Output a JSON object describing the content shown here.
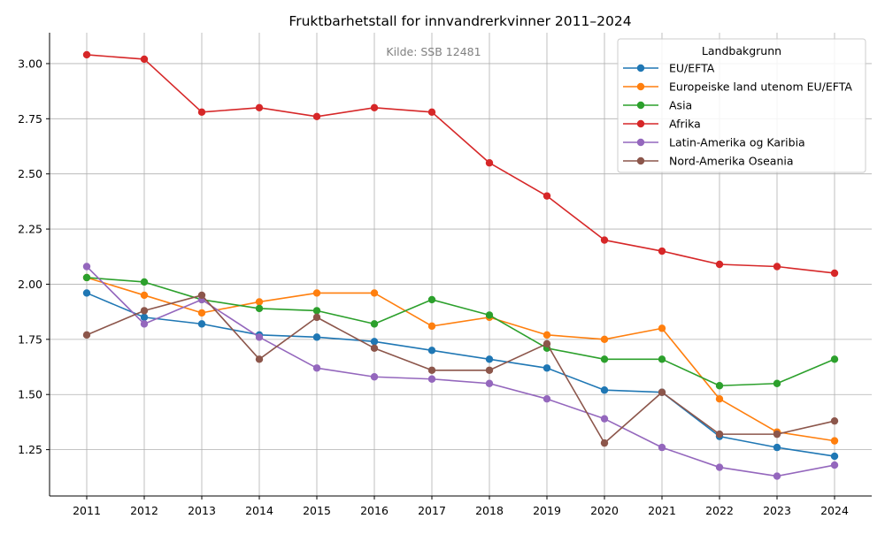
{
  "chart_data": {
    "type": "line",
    "title": "Fruktbarhetstall for innvandrerkvinner 2011–2024",
    "annotation": "Kilde: SSB 12481",
    "xlabel": "",
    "ylabel": "",
    "x": [
      2011,
      2012,
      2013,
      2014,
      2015,
      2016,
      2017,
      2018,
      2019,
      2020,
      2021,
      2022,
      2023,
      2024
    ],
    "ylim": [
      1.04,
      3.14
    ],
    "yticks": [
      "1.25",
      "1.50",
      "1.75",
      "2.00",
      "2.25",
      "2.50",
      "2.75",
      "3.00"
    ],
    "grid": true,
    "legend_title": "Landbakgrunn",
    "legend_position": "top-right",
    "series": [
      {
        "name": "EU/EFTA",
        "color": "#1f77b4",
        "values": [
          1.96,
          1.85,
          1.82,
          1.77,
          1.76,
          1.74,
          1.7,
          1.66,
          1.62,
          1.52,
          1.51,
          1.31,
          1.26,
          1.22
        ]
      },
      {
        "name": "Europeiske land utenom EU/EFTA",
        "color": "#ff7f0e",
        "values": [
          2.03,
          1.95,
          1.87,
          1.92,
          1.96,
          1.96,
          1.81,
          1.85,
          1.77,
          1.75,
          1.8,
          1.48,
          1.33,
          1.29
        ]
      },
      {
        "name": "Asia",
        "color": "#2ca02c",
        "values": [
          2.03,
          2.01,
          1.93,
          1.89,
          1.88,
          1.82,
          1.93,
          1.86,
          1.71,
          1.66,
          1.66,
          1.54,
          1.55,
          1.66
        ]
      },
      {
        "name": "Afrika",
        "color": "#d62728",
        "values": [
          3.04,
          3.02,
          2.78,
          2.8,
          2.76,
          2.8,
          2.78,
          2.55,
          2.4,
          2.2,
          2.15,
          2.09,
          2.08,
          2.05
        ]
      },
      {
        "name": "Latin-Amerika og Karibia",
        "color": "#9467bd",
        "values": [
          2.08,
          1.82,
          1.93,
          1.76,
          1.62,
          1.58,
          1.57,
          1.55,
          1.48,
          1.39,
          1.26,
          1.17,
          1.13,
          1.18
        ]
      },
      {
        "name": "Nord-Amerika Oseania",
        "color": "#8c564b",
        "values": [
          1.77,
          1.88,
          1.95,
          1.66,
          1.85,
          1.71,
          1.61,
          1.61,
          1.73,
          1.28,
          1.51,
          1.32,
          1.32,
          1.38
        ]
      }
    ]
  }
}
